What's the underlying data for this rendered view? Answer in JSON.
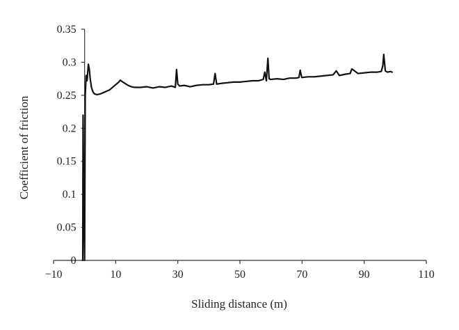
{
  "chart_data": {
    "type": "line",
    "title": "",
    "xlabel": "Sliding distance (m)",
    "ylabel": "Coefficient of friction",
    "xlim": [
      -10,
      110
    ],
    "ylim": [
      0,
      0.35
    ],
    "x_ticks": [
      -10,
      10,
      30,
      50,
      70,
      90,
      110
    ],
    "x_tick_labels": [
      "−10",
      "10",
      "30",
      "50",
      "70",
      "90",
      "110"
    ],
    "y_ticks": [
      0,
      0.05,
      0.1,
      0.15,
      0.2,
      0.25,
      0.3,
      0.35
    ],
    "y_tick_labels": [
      "0",
      "0.05",
      "0.1",
      "0.15",
      "0.2",
      "0.25",
      "0.3",
      "0.35"
    ],
    "grid": false,
    "legend": "none",
    "color": "#111111",
    "series": [
      {
        "x": [
          -0.6,
          -0.5,
          -0.3,
          0.0,
          0.2,
          0.5,
          0.8,
          1.0,
          1.2,
          1.5,
          1.8,
          2.2,
          2.7,
          3.2,
          4.0,
          5.0,
          6.0,
          7.0,
          8.0,
          9.0,
          10.0,
          11.0,
          11.5,
          12.0,
          13.0,
          14.0,
          15.0,
          16.0,
          18.0,
          20.0,
          22.0,
          24.0,
          26.0,
          28.0,
          29.2,
          29.6,
          30.0,
          30.6,
          32.0,
          34.0,
          36.0,
          38.0,
          40.0,
          41.5,
          42.0,
          42.5,
          44.0,
          46.0,
          48.0,
          50.0,
          52.0,
          54.0,
          56.0,
          57.5,
          58.0,
          58.5,
          59.0,
          59.4,
          59.9,
          62.0,
          64.0,
          66.0,
          68.0,
          69.0,
          69.4,
          69.9,
          72.0,
          74.0,
          76.0,
          78.0,
          80.0,
          81.0,
          82.0,
          84.0,
          85.5,
          86.0,
          88.0,
          90.0,
          92.0,
          94.0,
          95.5,
          96.0,
          96.3,
          96.8,
          97.5,
          98.5,
          99.0
        ],
        "y": [
          0.0,
          0.22,
          0.1,
          0.0,
          0.25,
          0.28,
          0.272,
          0.285,
          0.297,
          0.29,
          0.275,
          0.262,
          0.255,
          0.252,
          0.251,
          0.252,
          0.254,
          0.256,
          0.258,
          0.262,
          0.266,
          0.27,
          0.273,
          0.271,
          0.268,
          0.265,
          0.263,
          0.262,
          0.262,
          0.263,
          0.261,
          0.263,
          0.262,
          0.264,
          0.262,
          0.289,
          0.267,
          0.264,
          0.265,
          0.263,
          0.265,
          0.266,
          0.266,
          0.267,
          0.283,
          0.267,
          0.268,
          0.269,
          0.27,
          0.27,
          0.271,
          0.272,
          0.272,
          0.274,
          0.285,
          0.272,
          0.306,
          0.275,
          0.274,
          0.275,
          0.274,
          0.276,
          0.276,
          0.277,
          0.288,
          0.277,
          0.278,
          0.278,
          0.279,
          0.28,
          0.281,
          0.287,
          0.28,
          0.282,
          0.283,
          0.29,
          0.283,
          0.284,
          0.285,
          0.285,
          0.286,
          0.295,
          0.312,
          0.287,
          0.285,
          0.286,
          0.285
        ]
      }
    ]
  }
}
